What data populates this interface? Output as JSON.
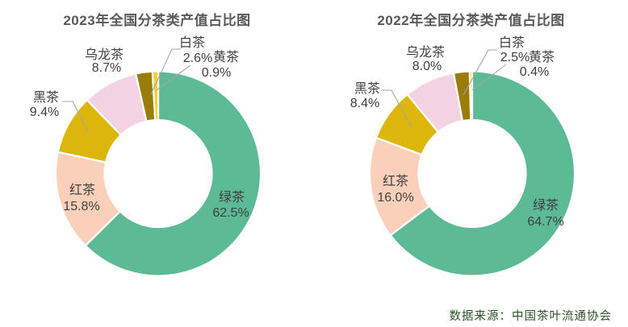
{
  "source": "数据来源：中国茶叶流通协会",
  "colors": {
    "slice_colors": [
      "#5cba95",
      "#fbd0ba",
      "#dcb60b",
      "#f3d2e4",
      "#9a7d08",
      "#f3d229"
    ],
    "title_text": "#595959",
    "label_text": "#404040",
    "leader_line": "#a6a6a6",
    "source_text": "#2d5226",
    "background": "#ffffff"
  },
  "chart_data": [
    {
      "type": "pie",
      "donut": true,
      "title": "2023年全国分茶类产值占比图",
      "categories": [
        "绿茶",
        "红茶",
        "黑茶",
        "乌龙茶",
        "白茶",
        "黄茶"
      ],
      "values": [
        62.5,
        15.8,
        9.4,
        8.7,
        2.6,
        0.9
      ],
      "labels": [
        "62.5%",
        "15.8%",
        "9.4%",
        "8.7%",
        "2.6%",
        "0.9%"
      ],
      "start_angle_deg": 0,
      "direction": "clockwise",
      "legend": "none"
    },
    {
      "type": "pie",
      "donut": true,
      "title": "2022年全国分茶类产值占比图",
      "categories": [
        "绿茶",
        "红茶",
        "黑茶",
        "乌龙茶",
        "白茶",
        "黄茶"
      ],
      "values": [
        64.7,
        16.0,
        8.4,
        8.0,
        2.5,
        0.4
      ],
      "labels": [
        "64.7%",
        "16.0%",
        "8.4%",
        "8.0%",
        "2.5%",
        "0.4%"
      ],
      "start_angle_deg": 0,
      "direction": "clockwise",
      "legend": "none"
    }
  ]
}
